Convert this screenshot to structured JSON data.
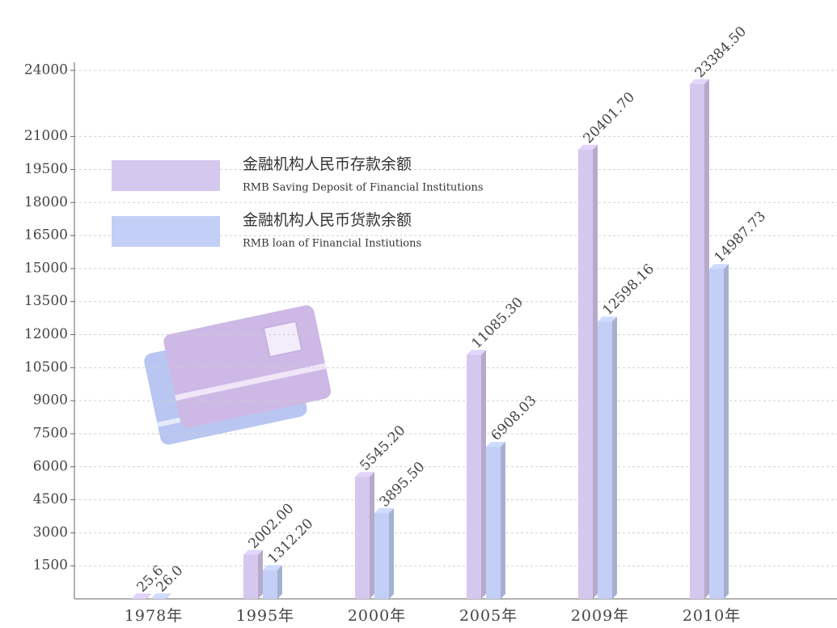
{
  "chart_data": {
    "type": "bar",
    "categories": [
      "1978年",
      "1995年",
      "2000年",
      "2005年",
      "2009年",
      "2010年"
    ],
    "series": [
      {
        "name": "金融机构人民币存款余额",
        "name_en": "RMB Saving Deposit of Financial Institutions",
        "color": "#d5c8ee",
        "values": [
          25.6,
          2002,
          5545.2,
          11085.3,
          20401.7,
          23384.5
        ],
        "value_labels": [
          "25.6",
          "2002.00",
          "5545.20",
          "11085.30",
          "20401.70",
          "23384.50"
        ]
      },
      {
        "name": "金融机构人民币货款余额",
        "name_en": "RMB loan of Financial Instiutions",
        "color": "#c3cff6",
        "values": [
          26,
          1312.2,
          3895.5,
          6908.03,
          12598.16,
          14987.73
        ],
        "value_labels": [
          "26.0",
          "1312.20",
          "3895.50",
          "6908.03",
          "12598.16",
          "14987.73"
        ]
      }
    ],
    "ylim": [
      0,
      24000
    ],
    "yticks": [
      1500,
      3000,
      4500,
      6000,
      7500,
      9000,
      10500,
      12000,
      13500,
      15000,
      16500,
      18000,
      19500,
      21000,
      24000
    ],
    "grid": true
  }
}
